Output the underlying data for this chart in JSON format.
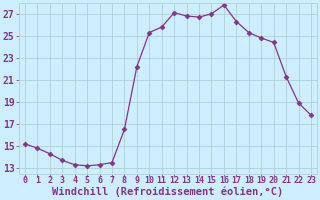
{
  "x": [
    0,
    1,
    2,
    3,
    4,
    5,
    6,
    7,
    8,
    9,
    10,
    11,
    12,
    13,
    14,
    15,
    16,
    17,
    18,
    19,
    20,
    21,
    22,
    23
  ],
  "y": [
    15.2,
    14.8,
    14.3,
    13.7,
    13.3,
    13.2,
    13.3,
    13.5,
    16.5,
    22.2,
    25.3,
    25.8,
    27.1,
    26.8,
    26.7,
    27.0,
    27.8,
    26.3,
    25.3,
    24.8,
    24.4,
    21.3,
    18.9,
    17.8
  ],
  "line_color": "#883388",
  "marker": "D",
  "marker_size": 2.5,
  "bg_color": "#cceeff",
  "grid_color": "#aacccc",
  "xlabel": "Windchill (Refroidissement éolien,°C)",
  "ylim": [
    12.5,
    28.0
  ],
  "yticks": [
    13,
    15,
    17,
    19,
    21,
    23,
    25,
    27
  ],
  "xlim": [
    -0.5,
    23.5
  ],
  "xticks": [
    0,
    1,
    2,
    3,
    4,
    5,
    6,
    7,
    8,
    9,
    10,
    11,
    12,
    13,
    14,
    15,
    16,
    17,
    18,
    19,
    20,
    21,
    22,
    23
  ],
  "xlabel_fontsize": 7.5,
  "tick_fontsize": 7,
  "label_color": "#883388"
}
